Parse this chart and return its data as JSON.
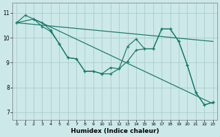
{
  "xlabel": "Humidex (Indice chaleur)",
  "background_color": "#cce8e8",
  "grid_color": "#aacccc",
  "line_color": "#1a7a6a",
  "xlim": [
    -0.5,
    23.5
  ],
  "ylim": [
    6.7,
    11.4
  ],
  "yticks": [
    7,
    8,
    9,
    10,
    11
  ],
  "xticks": [
    0,
    1,
    2,
    3,
    4,
    5,
    6,
    7,
    8,
    9,
    10,
    11,
    12,
    13,
    14,
    15,
    16,
    17,
    18,
    19,
    20,
    21,
    22,
    23
  ],
  "curve1_x": [
    0,
    1,
    2,
    3,
    4,
    5,
    6,
    7,
    8,
    9,
    10,
    11,
    12,
    13,
    14,
    15,
    16,
    17,
    18,
    19,
    20,
    21,
    22,
    23
  ],
  "curve1_y": [
    10.6,
    10.9,
    10.75,
    10.6,
    10.3,
    9.75,
    9.2,
    9.15,
    8.65,
    8.65,
    8.55,
    8.8,
    8.75,
    9.65,
    9.95,
    9.55,
    9.55,
    10.35,
    10.35,
    9.85,
    8.9,
    7.8,
    7.3,
    7.4
  ],
  "curve2_x": [
    0,
    2,
    3,
    4,
    5,
    6,
    7,
    8,
    9,
    10,
    11,
    12,
    13,
    14,
    15,
    16,
    17,
    18,
    19,
    20,
    21,
    22,
    23
  ],
  "curve2_y": [
    10.6,
    10.75,
    10.45,
    10.25,
    9.75,
    9.2,
    9.15,
    8.65,
    8.65,
    8.55,
    8.55,
    8.75,
    9.05,
    9.5,
    9.55,
    9.55,
    10.35,
    10.35,
    9.85,
    8.9,
    7.8,
    7.3,
    7.4
  ],
  "line1_x": [
    0,
    23
  ],
  "line1_y": [
    10.6,
    9.85
  ],
  "line2_x": [
    2,
    23
  ],
  "line2_y": [
    10.75,
    7.35
  ]
}
